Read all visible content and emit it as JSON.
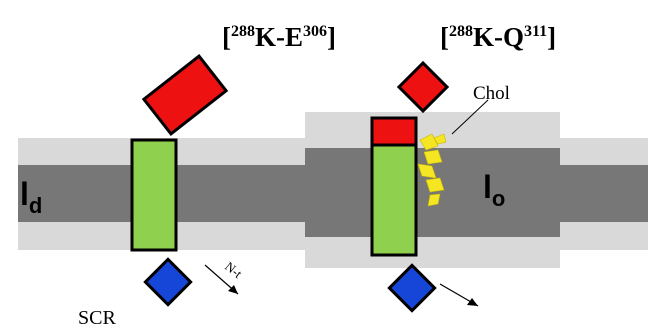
{
  "labels": {
    "left_title": {
      "open": "[",
      "sup1": "288",
      "main": "K-E",
      "sup2": "306",
      "close": "]"
    },
    "right_title": {
      "open": "[",
      "sup1": "288",
      "main": "K-Q",
      "sup2": "311",
      "close": "]"
    },
    "chol": "Chol",
    "ld": {
      "main": "l",
      "sub": "d"
    },
    "lo": {
      "main": "l",
      "sub": "o"
    },
    "nterm": "N-t",
    "scr": "SCR"
  }
}
